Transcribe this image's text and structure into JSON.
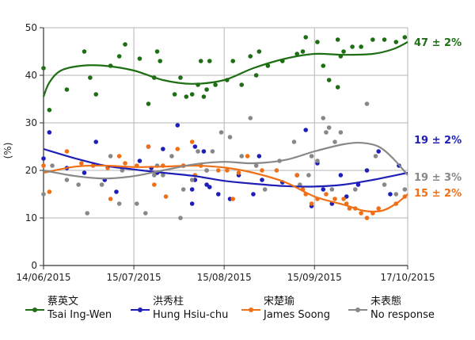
{
  "chart_data": {
    "type": "scatter",
    "ylabel": "(%)",
    "ylim": [
      0,
      50
    ],
    "yticks": [
      "0",
      "10",
      "20",
      "30",
      "40",
      "50"
    ],
    "xlim": [
      "2015-06-14",
      "2015-10-17"
    ],
    "xticks": [
      "14/06/2015",
      "15/07/2015",
      "15/08/2015",
      "15/09/2015",
      "17/10/2015"
    ],
    "grid": true,
    "legend_position": "bottom",
    "series": [
      {
        "name": "蔡英文 / Tsai Ing-Wen",
        "legend_zh": "蔡英文",
        "legend_en": "Tsai Ing-Wen",
        "color": "#1e6e14",
        "end_label": "47 ± 2%",
        "points": [
          [
            "2015-06-14",
            41.5
          ],
          [
            "2015-06-16",
            32.7
          ],
          [
            "2015-06-22",
            37
          ],
          [
            "2015-06-28",
            45
          ],
          [
            "2015-06-30",
            39.5
          ],
          [
            "2015-07-02",
            36
          ],
          [
            "2015-07-07",
            42
          ],
          [
            "2015-07-10",
            44
          ],
          [
            "2015-07-12",
            46.5
          ],
          [
            "2015-07-17",
            43.5
          ],
          [
            "2015-07-20",
            34
          ],
          [
            "2015-07-22",
            39.5
          ],
          [
            "2015-07-23",
            45
          ],
          [
            "2015-07-24",
            43
          ],
          [
            "2015-07-29",
            36
          ],
          [
            "2015-07-31",
            39.5
          ],
          [
            "2015-08-02",
            35.5
          ],
          [
            "2015-08-04",
            36
          ],
          [
            "2015-08-06",
            38
          ],
          [
            "2015-08-07",
            43
          ],
          [
            "2015-08-08",
            35.5
          ],
          [
            "2015-08-09",
            37
          ],
          [
            "2015-08-10",
            43
          ],
          [
            "2015-08-12",
            38
          ],
          [
            "2015-08-16",
            39
          ],
          [
            "2015-08-18",
            43
          ],
          [
            "2015-08-21",
            38
          ],
          [
            "2015-08-24",
            44
          ],
          [
            "2015-08-26",
            40
          ],
          [
            "2015-08-27",
            45
          ],
          [
            "2015-08-30",
            42
          ],
          [
            "2015-09-04",
            43
          ],
          [
            "2015-09-09",
            44.5
          ],
          [
            "2015-09-11",
            45
          ],
          [
            "2015-09-12",
            48
          ],
          [
            "2015-09-16",
            47
          ],
          [
            "2015-09-18",
            42
          ],
          [
            "2015-09-20",
            39
          ],
          [
            "2015-09-23",
            37.5
          ],
          [
            "2015-09-23",
            47.5
          ],
          [
            "2015-09-24",
            44
          ],
          [
            "2015-09-25",
            45
          ],
          [
            "2015-09-28",
            46
          ],
          [
            "2015-10-01",
            46
          ],
          [
            "2015-10-05",
            47.5
          ],
          [
            "2015-10-09",
            47.5
          ],
          [
            "2015-10-13",
            47
          ],
          [
            "2015-10-16",
            48
          ]
        ],
        "trend": [
          [
            "2015-06-14",
            35.5
          ],
          [
            "2015-06-16",
            38.5
          ],
          [
            "2015-06-20",
            41
          ],
          [
            "2015-06-27",
            42
          ],
          [
            "2015-07-05",
            42
          ],
          [
            "2015-07-15",
            41
          ],
          [
            "2015-07-25",
            39
          ],
          [
            "2015-08-04",
            38.2
          ],
          [
            "2015-08-15",
            39
          ],
          [
            "2015-08-25",
            41.5
          ],
          [
            "2015-09-05",
            43.5
          ],
          [
            "2015-09-15",
            44.5
          ],
          [
            "2015-09-25",
            44.3
          ],
          [
            "2015-10-05",
            44.5
          ],
          [
            "2015-10-12",
            45.5
          ],
          [
            "2015-10-17",
            47
          ]
        ]
      },
      {
        "name": "洪秀柱 / Hung Hsiu-chu",
        "legend_zh": "洪秀柱",
        "legend_en": "Hung Hsiu-chu",
        "color": "#1f1fb8",
        "end_label": "19 ± 2%",
        "points": [
          [
            "2015-06-14",
            22.5
          ],
          [
            "2015-06-16",
            28
          ],
          [
            "2015-06-22",
            20.5
          ],
          [
            "2015-06-28",
            19.5
          ],
          [
            "2015-07-02",
            26
          ],
          [
            "2015-07-05",
            18
          ],
          [
            "2015-07-09",
            15.5
          ],
          [
            "2015-07-17",
            22
          ],
          [
            "2015-07-20",
            25
          ],
          [
            "2015-07-21",
            20.5
          ],
          [
            "2015-07-23",
            19.5
          ],
          [
            "2015-07-25",
            24.5
          ],
          [
            "2015-07-30",
            29.5
          ],
          [
            "2015-08-01",
            21
          ],
          [
            "2015-08-04",
            16
          ],
          [
            "2015-08-04",
            13
          ],
          [
            "2015-08-05",
            18
          ],
          [
            "2015-08-05",
            25
          ],
          [
            "2015-08-08",
            24
          ],
          [
            "2015-08-09",
            17
          ],
          [
            "2015-08-10",
            16.5
          ],
          [
            "2015-08-13",
            15
          ],
          [
            "2015-08-17",
            14
          ],
          [
            "2015-08-20",
            19
          ],
          [
            "2015-08-25",
            15
          ],
          [
            "2015-08-27",
            23
          ],
          [
            "2015-08-28",
            18
          ],
          [
            "2015-09-04",
            17.5
          ],
          [
            "2015-09-09",
            19
          ],
          [
            "2015-09-12",
            28.5
          ],
          [
            "2015-09-14",
            12.5
          ],
          [
            "2015-09-16",
            21.5
          ],
          [
            "2015-09-18",
            16
          ],
          [
            "2015-09-21",
            13
          ],
          [
            "2015-09-24",
            19
          ],
          [
            "2015-09-26",
            14.5
          ],
          [
            "2015-09-30",
            17
          ],
          [
            "2015-10-03",
            20
          ],
          [
            "2015-10-07",
            24
          ],
          [
            "2015-10-11",
            15
          ],
          [
            "2015-10-14",
            21
          ]
        ],
        "trend": [
          [
            "2015-06-14",
            24.5
          ],
          [
            "2015-06-25",
            22.5
          ],
          [
            "2015-07-05",
            21
          ],
          [
            "2015-07-15",
            20.2
          ],
          [
            "2015-07-25",
            19.5
          ],
          [
            "2015-08-05",
            18.8
          ],
          [
            "2015-08-15",
            17.8
          ],
          [
            "2015-08-25",
            17.2
          ],
          [
            "2015-09-05",
            16.7
          ],
          [
            "2015-09-15",
            16.6
          ],
          [
            "2015-09-25",
            17
          ],
          [
            "2015-10-05",
            18
          ],
          [
            "2015-10-17",
            19.5
          ]
        ]
      },
      {
        "name": "宋楚瑜 / James Soong",
        "legend_zh": "宋楚瑜",
        "legend_en": "James Soong",
        "color": "#f07017",
        "end_label": "15 ± 2%",
        "points": [
          [
            "2015-06-14",
            21
          ],
          [
            "2015-06-16",
            15.5
          ],
          [
            "2015-06-22",
            24
          ],
          [
            "2015-06-27",
            21.5
          ],
          [
            "2015-07-01",
            21
          ],
          [
            "2015-07-06",
            20.5
          ],
          [
            "2015-07-07",
            14
          ],
          [
            "2015-07-10",
            23
          ],
          [
            "2015-07-12",
            21.5
          ],
          [
            "2015-07-16",
            21
          ],
          [
            "2015-07-20",
            25
          ],
          [
            "2015-07-22",
            17
          ],
          [
            "2015-07-25",
            21
          ],
          [
            "2015-07-26",
            14.5
          ],
          [
            "2015-07-30",
            24.5
          ],
          [
            "2015-08-01",
            21
          ],
          [
            "2015-08-04",
            26
          ],
          [
            "2015-08-05",
            19
          ],
          [
            "2015-08-07",
            21
          ],
          [
            "2015-08-09",
            20
          ],
          [
            "2015-08-13",
            20
          ],
          [
            "2015-08-16",
            20
          ],
          [
            "2015-08-18",
            14
          ],
          [
            "2015-08-20",
            19.5
          ],
          [
            "2015-08-23",
            23
          ],
          [
            "2015-08-28",
            20
          ],
          [
            "2015-09-02",
            20
          ],
          [
            "2015-09-09",
            19
          ],
          [
            "2015-09-11",
            16
          ],
          [
            "2015-09-12",
            15
          ],
          [
            "2015-09-14",
            13
          ],
          [
            "2015-09-16",
            14
          ],
          [
            "2015-09-19",
            15
          ],
          [
            "2015-09-22",
            14
          ],
          [
            "2015-09-25",
            14
          ],
          [
            "2015-09-26",
            13
          ],
          [
            "2015-09-27",
            12
          ],
          [
            "2015-09-29",
            12
          ],
          [
            "2015-10-01",
            11
          ],
          [
            "2015-10-03",
            10
          ],
          [
            "2015-10-05",
            11
          ],
          [
            "2015-10-07",
            12
          ],
          [
            "2015-10-13",
            13
          ],
          [
            "2015-10-16",
            14.5
          ]
        ],
        "trend": [
          [
            "2015-06-14",
            19.5
          ],
          [
            "2015-06-25",
            20.8
          ],
          [
            "2015-07-05",
            21
          ],
          [
            "2015-07-15",
            20.7
          ],
          [
            "2015-07-25",
            20.8
          ],
          [
            "2015-08-05",
            21
          ],
          [
            "2015-08-15",
            20.6
          ],
          [
            "2015-08-25",
            19.5
          ],
          [
            "2015-09-05",
            17.5
          ],
          [
            "2015-09-15",
            14.5
          ],
          [
            "2015-09-25",
            12.8
          ],
          [
            "2015-10-02",
            11.5
          ],
          [
            "2015-10-08",
            11.5
          ],
          [
            "2015-10-13",
            13
          ],
          [
            "2015-10-17",
            15
          ]
        ]
      },
      {
        "name": "未表態 / No response",
        "legend_zh": "未表態",
        "legend_en": "No response",
        "color": "#888888",
        "end_label": "19 ± 3%",
        "points": [
          [
            "2015-06-14",
            15
          ],
          [
            "2015-06-17",
            21
          ],
          [
            "2015-06-22",
            18
          ],
          [
            "2015-06-26",
            17
          ],
          [
            "2015-06-29",
            11
          ],
          [
            "2015-07-04",
            17
          ],
          [
            "2015-07-07",
            23
          ],
          [
            "2015-07-10",
            13
          ],
          [
            "2015-07-11",
            20
          ],
          [
            "2015-07-16",
            13
          ],
          [
            "2015-07-19",
            11
          ],
          [
            "2015-07-22",
            19
          ],
          [
            "2015-07-23",
            21
          ],
          [
            "2015-07-25",
            19
          ],
          [
            "2015-07-28",
            23
          ],
          [
            "2015-07-31",
            10
          ],
          [
            "2015-08-01",
            16
          ],
          [
            "2015-08-04",
            18
          ],
          [
            "2015-08-06",
            24
          ],
          [
            "2015-08-09",
            20
          ],
          [
            "2015-08-11",
            24
          ],
          [
            "2015-08-14",
            28
          ],
          [
            "2015-08-17",
            27
          ],
          [
            "2015-08-21",
            23
          ],
          [
            "2015-08-24",
            31
          ],
          [
            "2015-08-26",
            21
          ],
          [
            "2015-08-29",
            16
          ],
          [
            "2015-09-03",
            22
          ],
          [
            "2015-09-08",
            26
          ],
          [
            "2015-09-10",
            17
          ],
          [
            "2015-09-13",
            19
          ],
          [
            "2015-09-14",
            23
          ],
          [
            "2015-09-16",
            22
          ],
          [
            "2015-09-18",
            31
          ],
          [
            "2015-09-19",
            28
          ],
          [
            "2015-09-20",
            29
          ],
          [
            "2015-09-21",
            16
          ],
          [
            "2015-09-22",
            26
          ],
          [
            "2015-09-24",
            28
          ],
          [
            "2015-09-29",
            16
          ],
          [
            "2015-10-03",
            34
          ],
          [
            "2015-10-06",
            23
          ],
          [
            "2015-10-09",
            17
          ],
          [
            "2015-10-13",
            15
          ],
          [
            "2015-10-16",
            16
          ]
        ],
        "trend": [
          [
            "2015-06-14",
            20
          ],
          [
            "2015-06-25",
            18.8
          ],
          [
            "2015-07-05",
            18.3
          ],
          [
            "2015-07-15",
            18.8
          ],
          [
            "2015-07-25",
            20
          ],
          [
            "2015-08-05",
            21.3
          ],
          [
            "2015-08-15",
            21.8
          ],
          [
            "2015-08-25",
            21.5
          ],
          [
            "2015-09-05",
            22.2
          ],
          [
            "2015-09-15",
            24
          ],
          [
            "2015-09-25",
            25.5
          ],
          [
            "2015-10-01",
            25.8
          ],
          [
            "2015-10-07",
            25
          ],
          [
            "2015-10-12",
            22.5
          ],
          [
            "2015-10-17",
            19
          ]
        ]
      }
    ]
  }
}
